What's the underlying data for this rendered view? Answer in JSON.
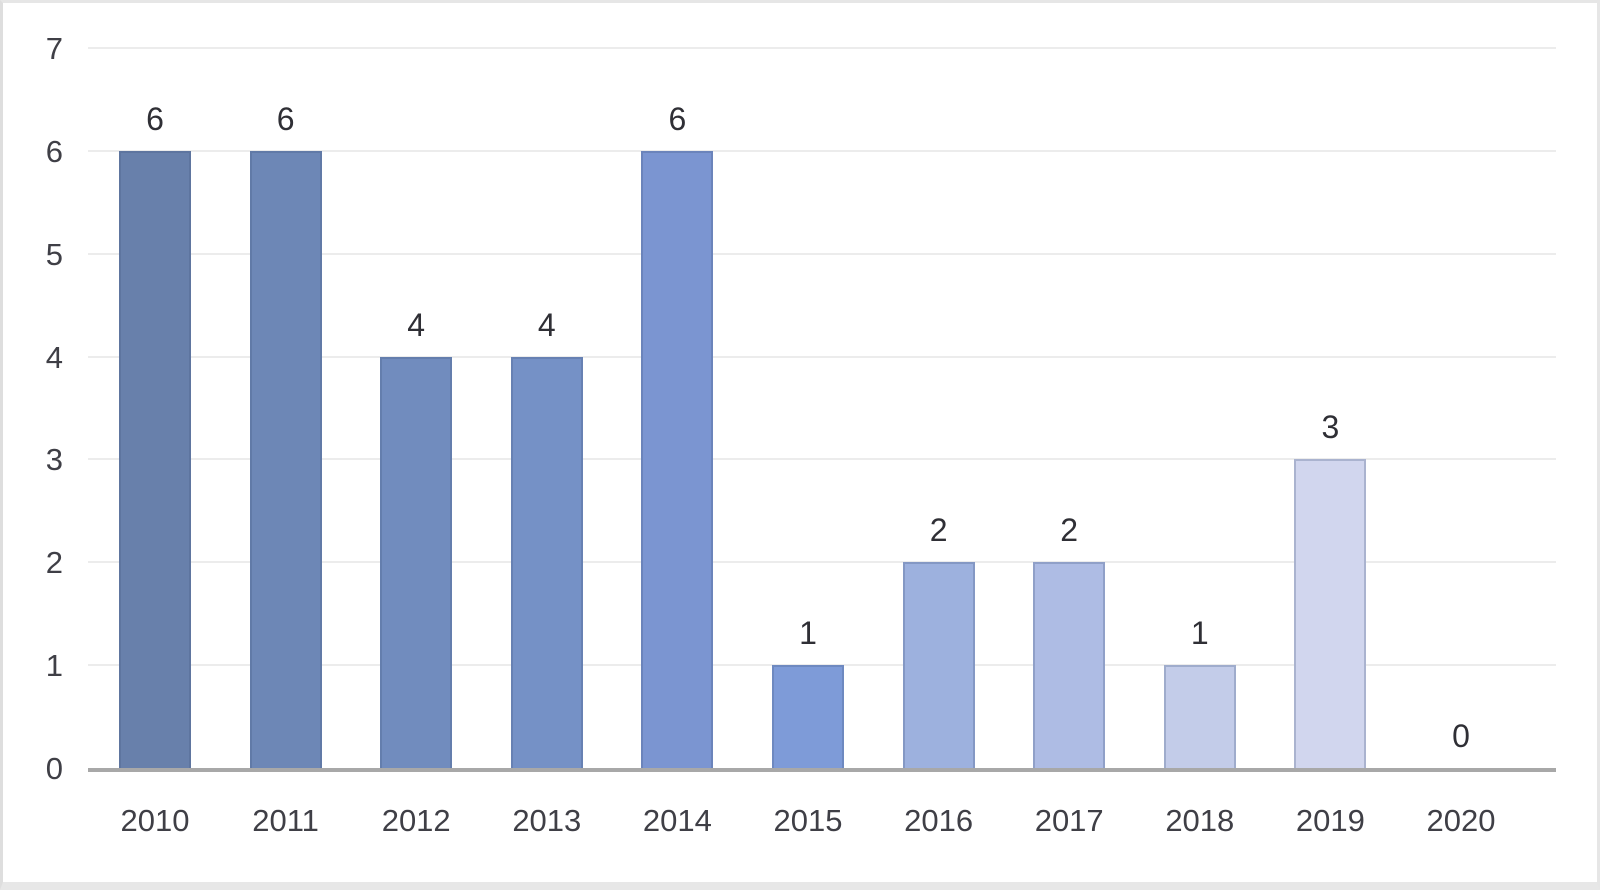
{
  "chart_data": {
    "type": "bar",
    "title": "",
    "categories": [
      "2010",
      "2011",
      "2012",
      "2013",
      "2014",
      "2015",
      "2016",
      "2017",
      "2018",
      "2019",
      "2020"
    ],
    "values": [
      6,
      6,
      4,
      4,
      6,
      1,
      2,
      2,
      1,
      3,
      0
    ],
    "data_labels": [
      "6",
      "6",
      "4",
      "4",
      "6",
      "1",
      "2",
      "2",
      "1",
      "3",
      "0"
    ],
    "bar_colors": [
      "#6880ab",
      "#6d87b6",
      "#718cbe",
      "#7591c6",
      "#7b95d1",
      "#7e9bd8",
      "#9db1de",
      "#aebce4",
      "#c3cce9",
      "#d1d6ee",
      "#d1d6ee"
    ],
    "xlabel": "",
    "ylabel": "",
    "ylim": [
      0,
      7
    ],
    "ytick_labels": [
      "0",
      "1",
      "2",
      "3",
      "4",
      "5",
      "6",
      "7"
    ],
    "grid": "horizontal",
    "legend": "none",
    "colors": {
      "gridline": "#ececec",
      "axis_line": "#a8a8a8",
      "tick_text": "#3f3f46",
      "value_label_text": "#2f2f35",
      "background": "#ffffff"
    }
  },
  "layout_note": "single bar chart, values shown above each bar, no title or legend"
}
